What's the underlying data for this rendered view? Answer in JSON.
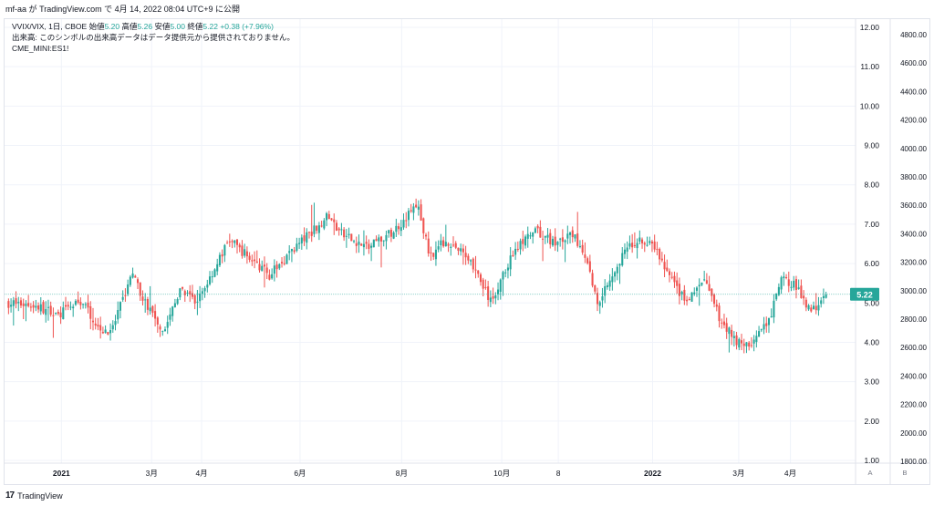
{
  "header": {
    "user": "mf-aa",
    "ga": "が",
    "site": "TradingView.com",
    "de": "で",
    "date": "4月 14, 2022 08:04 UTC+9",
    "ni": "に公開"
  },
  "legend": {
    "symbol": "VVIX/VIX, 1日, CBOE",
    "open_label": "始値",
    "open": "5.20",
    "high_label": "高値",
    "high": "5.26",
    "low_label": "安値",
    "low": "5.00",
    "close_label": "終値",
    "close": "5.22",
    "change": "+0.38 (+7.96%)",
    "volume_note": "出来高: このシンボルの出来高データはデータ提供元から提供されておりません。",
    "second_symbol": "CME_MINI:ES1!"
  },
  "footer": {
    "logo": "17",
    "brand": "TradingView"
  },
  "scale_buttons": {
    "a": "A",
    "b": "B"
  },
  "chart_data": {
    "type": "candlestick",
    "title": "VVIX/VIX, 1日, CBOE",
    "series": [
      {
        "name": "VVIX/VIX",
        "axis": "right-inner"
      },
      {
        "name": "CME_MINI:ES1!",
        "axis": "right-outer"
      }
    ],
    "price_axis": {
      "ticks": [
        "12.00",
        "11.00",
        "10.00",
        "9.00",
        "8.00",
        "7.00",
        "6.00",
        "5.00",
        "4.00",
        "3.00",
        "2.00",
        "1.00"
      ],
      "ylim": [
        1,
        12
      ]
    },
    "es_axis": {
      "ticks": [
        "4800.00",
        "4600.00",
        "4400.00",
        "4200.00",
        "4000.00",
        "3800.00",
        "3600.00",
        "3400.00",
        "3200.00",
        "3000.00",
        "2800.00",
        "2600.00",
        "2400.00",
        "2200.00",
        "2000.00",
        "1800.00"
      ],
      "ylim": [
        1800,
        4800
      ]
    },
    "time_axis": {
      "labels": [
        {
          "text": "2021",
          "bold": true,
          "t": 0.066
        },
        {
          "text": "3月",
          "bold": false,
          "t": 0.176
        },
        {
          "text": "4月",
          "bold": false,
          "t": 0.237
        },
        {
          "text": "6月",
          "bold": false,
          "t": 0.357
        },
        {
          "text": "8月",
          "bold": false,
          "t": 0.481
        },
        {
          "text": "10月",
          "bold": false,
          "t": 0.603
        },
        {
          "text": "8",
          "bold": false,
          "t": 0.672
        },
        {
          "text": "2022",
          "bold": true,
          "t": 0.787
        },
        {
          "text": "3月",
          "bold": false,
          "t": 0.892
        },
        {
          "text": "4月",
          "bold": false,
          "t": 0.955
        }
      ]
    },
    "last_price": "5.22",
    "last_value": 5.22,
    "grid": true,
    "up_color": "#26a69a",
    "down_color": "#ef5350",
    "anchors": [
      [
        0.0,
        5.0
      ],
      [
        0.03,
        4.95
      ],
      [
        0.06,
        4.7
      ],
      [
        0.09,
        5.05
      ],
      [
        0.11,
        4.4
      ],
      [
        0.125,
        4.2
      ],
      [
        0.14,
        5.1
      ],
      [
        0.15,
        5.75
      ],
      [
        0.17,
        4.9
      ],
      [
        0.19,
        4.3
      ],
      [
        0.21,
        5.3
      ],
      [
        0.23,
        5.0
      ],
      [
        0.245,
        5.6
      ],
      [
        0.27,
        6.6
      ],
      [
        0.3,
        6.05
      ],
      [
        0.32,
        5.7
      ],
      [
        0.345,
        6.3
      ],
      [
        0.37,
        6.8
      ],
      [
        0.39,
        7.2
      ],
      [
        0.41,
        6.7
      ],
      [
        0.44,
        6.4
      ],
      [
        0.47,
        6.8
      ],
      [
        0.5,
        7.5
      ],
      [
        0.515,
        6.2
      ],
      [
        0.535,
        6.6
      ],
      [
        0.565,
        6.1
      ],
      [
        0.59,
        5.0
      ],
      [
        0.62,
        6.4
      ],
      [
        0.645,
        6.8
      ],
      [
        0.67,
        6.5
      ],
      [
        0.69,
        6.75
      ],
      [
        0.71,
        5.9
      ],
      [
        0.72,
        5.0
      ],
      [
        0.75,
        6.2
      ],
      [
        0.77,
        6.6
      ],
      [
        0.79,
        6.4
      ],
      [
        0.81,
        5.6
      ],
      [
        0.83,
        5.0
      ],
      [
        0.85,
        5.6
      ],
      [
        0.87,
        4.6
      ],
      [
        0.89,
        4.05
      ],
      [
        0.905,
        3.9
      ],
      [
        0.93,
        4.5
      ],
      [
        0.945,
        5.6
      ],
      [
        0.96,
        5.5
      ],
      [
        0.975,
        5.0
      ],
      [
        0.985,
        4.85
      ],
      [
        1.0,
        5.22
      ]
    ],
    "n_candles": 330,
    "seed": 7
  }
}
